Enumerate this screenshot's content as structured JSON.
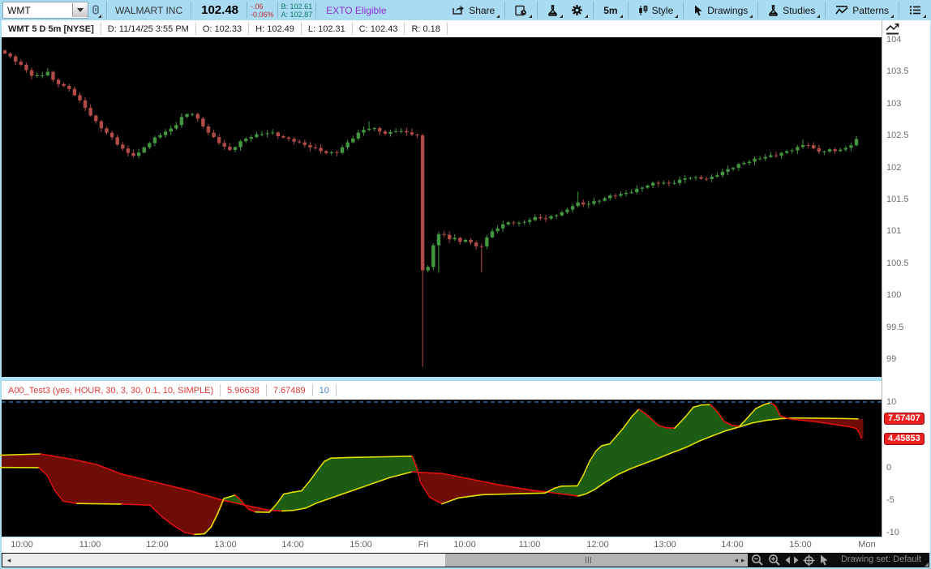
{
  "toolbar": {
    "symbol": "WMT",
    "company": "WALMART INC",
    "last_price": "102.48",
    "change": "-.06",
    "change_pct": "-0.06%",
    "bid": "B: 102.61",
    "ask": "A: 102.87",
    "exto": "EXTO Eligible",
    "share_label": "Share",
    "timeframe_label": "5m",
    "style_label": "Style",
    "drawings_label": "Drawings",
    "studies_label": "Studies",
    "patterns_label": "Patterns"
  },
  "chart_header": {
    "title": "WMT 5 D 5m [NYSE]",
    "cells": [
      "D: 11/14/25 3:55 PM",
      "O: 102.33",
      "H: 102.49",
      "L: 102.31",
      "C: 102.43",
      "R: 0.18"
    ]
  },
  "study_header": {
    "title": "A00_Test3 (yes, HOUR, 30, 3, 30, 0.1, 10, SIMPLE)",
    "values": [
      {
        "text": "5.96638",
        "color": "red"
      },
      {
        "text": "7.67489",
        "color": "red"
      },
      {
        "text": "10",
        "color": "blue"
      }
    ]
  },
  "status_bar": {
    "drawing_set": "Drawing set: Default"
  },
  "colors": {
    "candle_up": "#43953f",
    "candle_down": "#b14b47",
    "cloud_up": "#1d5c13",
    "cloud_down": "#6e0d05",
    "line_rising": "#e3e000",
    "line_falling": "#e01010",
    "level_line": "#2b7fd4",
    "badge": "#ef1f1f",
    "toolbar_bg": "#a9dcf2"
  },
  "chart_data": [
    {
      "type": "candlestick",
      "symbol": "WMT",
      "timeframe": "5 D 5m [NYSE]",
      "y_axis": {
        "min": 99,
        "max": 104,
        "tick_step": 0.5,
        "ticks": [
          "104",
          "103.5",
          "103",
          "102.5",
          "102",
          "101.5",
          "101",
          "100.5",
          "100",
          "99.5",
          "99"
        ]
      },
      "x_ticks": [
        {
          "label": "10:00",
          "x": 25
        },
        {
          "label": "11:00",
          "x": 109
        },
        {
          "label": "12:00",
          "x": 192
        },
        {
          "label": "13:00",
          "x": 276
        },
        {
          "label": "14:00",
          "x": 359
        },
        {
          "label": "15:00",
          "x": 443
        },
        {
          "label": "Fri",
          "x": 520
        },
        {
          "label": "10:00",
          "x": 571
        },
        {
          "label": "11:00",
          "x": 651
        },
        {
          "label": "12:00",
          "x": 735
        },
        {
          "label": "13:00",
          "x": 818
        },
        {
          "label": "14:00",
          "x": 901
        },
        {
          "label": "15:00",
          "x": 985
        },
        {
          "label": "Mon",
          "x": 1067
        }
      ],
      "bar_start_x": 6,
      "bar_step": 6.604,
      "bar_count": 160,
      "crash_low": 98.88,
      "close_anchors": [
        [
          4,
          103.8
        ],
        [
          14,
          103.72
        ],
        [
          26,
          103.6
        ],
        [
          38,
          103.45
        ],
        [
          50,
          103.42
        ],
        [
          58,
          103.52
        ],
        [
          66,
          103.35
        ],
        [
          78,
          103.28
        ],
        [
          88,
          103.2
        ],
        [
          98,
          103.05
        ],
        [
          110,
          102.85
        ],
        [
          122,
          102.65
        ],
        [
          134,
          102.52
        ],
        [
          146,
          102.35
        ],
        [
          158,
          102.22
        ],
        [
          168,
          102.18
        ],
        [
          178,
          102.32
        ],
        [
          190,
          102.45
        ],
        [
          202,
          102.55
        ],
        [
          214,
          102.62
        ],
        [
          226,
          102.82
        ],
        [
          238,
          102.85
        ],
        [
          250,
          102.65
        ],
        [
          262,
          102.48
        ],
        [
          274,
          102.35
        ],
        [
          284,
          102.26
        ],
        [
          296,
          102.4
        ],
        [
          308,
          102.48
        ],
        [
          320,
          102.52
        ],
        [
          334,
          102.55
        ],
        [
          348,
          102.47
        ],
        [
          362,
          102.42
        ],
        [
          376,
          102.35
        ],
        [
          390,
          102.29
        ],
        [
          404,
          102.22
        ],
        [
          416,
          102.24
        ],
        [
          428,
          102.38
        ],
        [
          440,
          102.52
        ],
        [
          452,
          102.62
        ],
        [
          464,
          102.6
        ],
        [
          476,
          102.52
        ],
        [
          488,
          102.58
        ],
        [
          500,
          102.55
        ],
        [
          510,
          102.52
        ],
        [
          514.5,
          102.5
        ],
        [
          517,
          100.05
        ],
        [
          523,
          100.55
        ],
        [
          529,
          100.42
        ],
        [
          536,
          100.88
        ],
        [
          544,
          101.02
        ],
        [
          552,
          100.85
        ],
        [
          560,
          100.92
        ],
        [
          568,
          100.82
        ],
        [
          576,
          100.88
        ],
        [
          584,
          100.8
        ],
        [
          591,
          100.7
        ],
        [
          598,
          100.88
        ],
        [
          606,
          100.98
        ],
        [
          614,
          101.06
        ],
        [
          622,
          101.12
        ],
        [
          632,
          101.15
        ],
        [
          642,
          101.12
        ],
        [
          652,
          101.18
        ],
        [
          662,
          101.22
        ],
        [
          674,
          101.2
        ],
        [
          686,
          101.26
        ],
        [
          698,
          101.32
        ],
        [
          710,
          101.45
        ],
        [
          720,
          101.42
        ],
        [
          730,
          101.45
        ],
        [
          742,
          101.5
        ],
        [
          754,
          101.56
        ],
        [
          766,
          101.58
        ],
        [
          778,
          101.62
        ],
        [
          790,
          101.68
        ],
        [
          802,
          101.74
        ],
        [
          814,
          101.77
        ],
        [
          826,
          101.74
        ],
        [
          838,
          101.8
        ],
        [
          850,
          101.85
        ],
        [
          862,
          101.83
        ],
        [
          874,
          101.82
        ],
        [
          886,
          101.9
        ],
        [
          898,
          101.97
        ],
        [
          910,
          102.04
        ],
        [
          922,
          102.09
        ],
        [
          934,
          102.14
        ],
        [
          946,
          102.17
        ],
        [
          958,
          102.2
        ],
        [
          970,
          102.25
        ],
        [
          982,
          102.3
        ],
        [
          994,
          102.38
        ],
        [
          1004,
          102.28
        ],
        [
          1014,
          102.24
        ],
        [
          1024,
          102.28
        ],
        [
          1034,
          102.26
        ],
        [
          1044,
          102.31
        ],
        [
          1052,
          102.38
        ],
        [
          1058,
          102.46
        ]
      ],
      "extra_wicks": [
        {
          "x": 455,
          "high": 102.72
        },
        {
          "x": 712,
          "high": 101.62
        },
        {
          "x": 993,
          "high": 102.44
        },
        {
          "x": 523,
          "low": 99.95
        },
        {
          "x": 541,
          "low": 100.35
        },
        {
          "x": 592,
          "low": 100.36
        }
      ]
    },
    {
      "type": "area",
      "title": "A00_Test3 (yes, HOUR, 30, 3, 30, 0.1, 10, SIMPLE)",
      "y_axis": {
        "min": -10,
        "max": 10,
        "ticks": [
          {
            "label": "10",
            "v": 10
          },
          {
            "label": "0",
            "v": 0
          },
          {
            "label": "-5",
            "v": -5
          },
          {
            "label": "-10",
            "v": -10
          }
        ]
      },
      "level_line_value": 10,
      "badges": [
        {
          "text": "7.57407",
          "y": 516
        },
        {
          "text": "4.45853",
          "y": 541
        }
      ],
      "fill_rule": "green where fast above slow, maroon where fast below slow",
      "series": [
        {
          "name": "fast",
          "points": [
            [
              0,
              -0.02
            ],
            [
              48,
              -0.05
            ],
            [
              58,
              -1.2
            ],
            [
              68,
              -3.6
            ],
            [
              78,
              -5.2
            ],
            [
              95,
              -5.55
            ],
            [
              150,
              -5.65
            ],
            [
              185,
              -5.8
            ],
            [
              200,
              -7.6
            ],
            [
              215,
              -9.0
            ],
            [
              228,
              -10.0
            ],
            [
              240,
              -10.3
            ],
            [
              252,
              -10.2
            ],
            [
              260,
              -9.2
            ],
            [
              268,
              -7.2
            ],
            [
              276,
              -4.8
            ],
            [
              290,
              -4.25
            ],
            [
              298,
              -5.2
            ],
            [
              306,
              -6.4
            ],
            [
              315,
              -6.85
            ],
            [
              332,
              -6.9
            ],
            [
              342,
              -5.5
            ],
            [
              350,
              -4.1
            ],
            [
              362,
              -3.8
            ],
            [
              372,
              -3.6
            ],
            [
              382,
              -2.1
            ],
            [
              392,
              -0.4
            ],
            [
              400,
              0.9
            ],
            [
              408,
              1.4
            ],
            [
              430,
              1.5
            ],
            [
              470,
              1.6
            ],
            [
              508,
              1.7
            ],
            [
              513,
              0.2
            ],
            [
              519,
              -2.4
            ],
            [
              530,
              -4.6
            ],
            [
              545,
              -5.6
            ],
            [
              565,
              -4.7
            ],
            [
              595,
              -4.2
            ],
            [
              640,
              -4.05
            ],
            [
              672,
              -3.95
            ],
            [
              684,
              -3.2
            ],
            [
              692,
              -2.9
            ],
            [
              712,
              -2.85
            ],
            [
              719,
              -1.3
            ],
            [
              727,
              0.9
            ],
            [
              735,
              2.5
            ],
            [
              742,
              3.3
            ],
            [
              752,
              3.6
            ],
            [
              768,
              5.9
            ],
            [
              780,
              7.9
            ],
            [
              788,
              8.9
            ],
            [
              798,
              8.0
            ],
            [
              812,
              6.4
            ],
            [
              822,
              6.05
            ],
            [
              832,
              6.0
            ],
            [
              845,
              7.7
            ],
            [
              855,
              9.2
            ],
            [
              865,
              9.55
            ],
            [
              876,
              9.6
            ],
            [
              884,
              8.6
            ],
            [
              893,
              7.0
            ],
            [
              903,
              6.4
            ],
            [
              912,
              6.3
            ],
            [
              922,
              7.6
            ],
            [
              932,
              9.0
            ],
            [
              942,
              9.6
            ],
            [
              950,
              9.9
            ],
            [
              956,
              9.4
            ],
            [
              962,
              7.9
            ],
            [
              972,
              7.45
            ],
            [
              985,
              7.25
            ],
            [
              1005,
              7.0
            ],
            [
              1030,
              6.55
            ],
            [
              1048,
              6.2
            ],
            [
              1056,
              5.95
            ],
            [
              1060,
              5.2
            ],
            [
              1062,
              4.46
            ]
          ]
        },
        {
          "name": "slow",
          "points": [
            [
              0,
              1.85
            ],
            [
              50,
              2.05
            ],
            [
              90,
              1.2
            ],
            [
              120,
              0.4
            ],
            [
              150,
              -1.05
            ],
            [
              200,
              -2.55
            ],
            [
              233,
              -3.55
            ],
            [
              270,
              -4.9
            ],
            [
              300,
              -5.75
            ],
            [
              330,
              -6.55
            ],
            [
              348,
              -6.7
            ],
            [
              362,
              -6.6
            ],
            [
              377,
              -6.25
            ],
            [
              390,
              -5.5
            ],
            [
              420,
              -4.2
            ],
            [
              450,
              -2.9
            ],
            [
              480,
              -1.6
            ],
            [
              508,
              -0.7
            ],
            [
              520,
              -0.8
            ],
            [
              545,
              -0.95
            ],
            [
              580,
              -1.8
            ],
            [
              620,
              -2.8
            ],
            [
              655,
              -3.5
            ],
            [
              678,
              -3.85
            ],
            [
              700,
              -4.2
            ],
            [
              713,
              -4.4
            ],
            [
              722,
              -4.1
            ],
            [
              732,
              -3.5
            ],
            [
              745,
              -2.4
            ],
            [
              762,
              -1.1
            ],
            [
              778,
              -0.2
            ],
            [
              795,
              0.6
            ],
            [
              812,
              1.4
            ],
            [
              828,
              2.2
            ],
            [
              845,
              3.0
            ],
            [
              862,
              4.0
            ],
            [
              878,
              4.8
            ],
            [
              895,
              5.6
            ],
            [
              912,
              6.2
            ],
            [
              928,
              6.8
            ],
            [
              945,
              7.2
            ],
            [
              962,
              7.45
            ],
            [
              980,
              7.55
            ],
            [
              1010,
              7.52
            ],
            [
              1040,
              7.47
            ],
            [
              1058,
              7.42
            ]
          ]
        }
      ]
    }
  ]
}
